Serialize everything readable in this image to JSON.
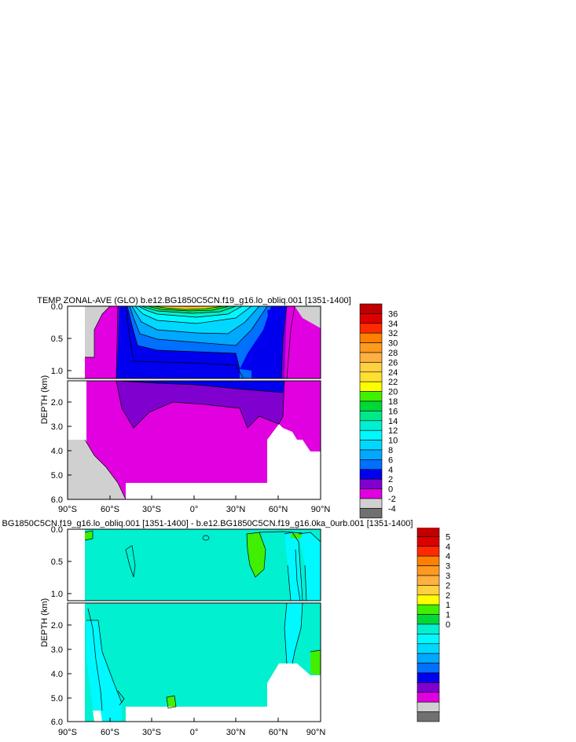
{
  "chart_data": [
    {
      "type": "heatmap",
      "title": "TEMP ZONAL-AVE (GLO) b.e12.BG1850C5CN.f19_g16.lo_obliq.001 [1351-1400]",
      "ylabel": "DEPTH (km)",
      "x_ticks": [
        "90°S",
        "60°S",
        "30°S",
        "0°",
        "30°N",
        "60°N",
        "90°N"
      ],
      "x_range": [
        -90,
        90
      ],
      "upper_panel": {
        "y_range": [
          0.0,
          1.1
        ],
        "y_ticks": [
          "0.0",
          "0.5",
          "1.0"
        ]
      },
      "lower_panel": {
        "y_range": [
          1.1,
          6.0
        ],
        "y_ticks": [
          "2.0",
          "3.0",
          "4.0",
          "5.0",
          "6.0"
        ]
      },
      "colorbar": {
        "labels": [
          "36",
          "34",
          "32",
          "30",
          "28",
          "26",
          "24",
          "22",
          "20",
          "18",
          "16",
          "14",
          "12",
          "10",
          "8",
          "6",
          "4",
          "2",
          "0",
          "-2",
          "-4"
        ],
        "colors": [
          "#c00000",
          "#dd0000",
          "#ff2a00",
          "#ff8000",
          "#ff9a20",
          "#ffb040",
          "#ffd040",
          "#ffe030",
          "#ffff00",
          "#40f000",
          "#00d838",
          "#00e888",
          "#00f0d0",
          "#00f8ff",
          "#00d8ff",
          "#00a8ff",
          "#0070ff",
          "#0000ee",
          "#8000d0",
          "#e000e0",
          "#d0d0d0",
          "#707070"
        ]
      }
    },
    {
      "type": "heatmap",
      "title": "BG1850C5CN.f19_g16.lo_obliq.001 [1351-1400] - b.e12.BG1850C5CN.f19_g16.0ka_0urb.001 [1351-1400]",
      "ylabel": "DEPTH (km)",
      "x_ticks": [
        "90°S",
        "60°S",
        "30°S",
        "0°",
        "30°N",
        "60°N",
        "90°N"
      ],
      "x_range": [
        -90,
        90
      ],
      "upper_panel": {
        "y_range": [
          0.0,
          1.1
        ],
        "y_ticks": [
          "0.0",
          "0.5",
          "1.0"
        ]
      },
      "lower_panel": {
        "y_range": [
          1.1,
          6.0
        ],
        "y_ticks": [
          "2.0",
          "3.0",
          "4.0",
          "5.0",
          "6.0"
        ]
      },
      "colorbar": {
        "labels": [
          "5",
          "4",
          "4",
          "3",
          "3",
          "2",
          "2",
          "1",
          "1",
          "0"
        ],
        "colors": [
          "#c00000",
          "#dd0000",
          "#ff2a00",
          "#ff8000",
          "#ff9a20",
          "#ffb040",
          "#ffd040",
          "#ffff00",
          "#40f000",
          "#00d838",
          "#00f0d0",
          "#00f8ff",
          "#00d8ff",
          "#00a8ff",
          "#0070ff",
          "#0000ee",
          "#8000d0",
          "#e000e0",
          "#d0d0d0",
          "#707070"
        ]
      }
    }
  ]
}
